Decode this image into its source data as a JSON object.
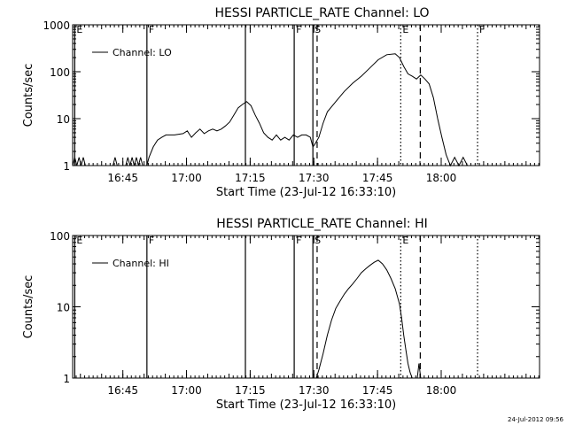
{
  "footer_timestamp": "24-Jul-2012 09:56",
  "chart_data": [
    {
      "type": "line",
      "title": "HESSI PARTICLE_RATE Channel: LO",
      "xlabel": "Start Time (23-Jul-12 16:33:10)",
      "ylabel": "Counts/sec",
      "x_unit": "minutes after 16:33:10",
      "xlim": [
        0,
        110
      ],
      "ylim": [
        1,
        1000
      ],
      "y_scale": "log",
      "x_ticks": [
        {
          "label": "16:45",
          "t": 11.83
        },
        {
          "label": "17:00",
          "t": 26.83
        },
        {
          "label": "17:15",
          "t": 41.83
        },
        {
          "label": "17:30",
          "t": 56.83
        },
        {
          "label": "17:45",
          "t": 71.83
        },
        {
          "label": "18:00",
          "t": 86.83
        }
      ],
      "y_ticks": [
        {
          "label": "1",
          "v": 1
        },
        {
          "label": "10",
          "v": 10
        },
        {
          "label": "100",
          "v": 100
        },
        {
          "label": "1000",
          "v": 1000
        }
      ],
      "legend": {
        "placement": "top-left",
        "label": "Channel: LO"
      },
      "markers": [
        {
          "t": 0.5,
          "style": "solid",
          "label": "E"
        },
        {
          "t": 17.5,
          "style": "solid",
          "label": "F"
        },
        {
          "t": 40.7,
          "style": "solid",
          "label": ""
        },
        {
          "t": 52.2,
          "style": "solid",
          "label": "F"
        },
        {
          "t": 56.6,
          "style": "solid",
          "label": "S"
        },
        {
          "t": 57.6,
          "style": "dashed",
          "label": ""
        },
        {
          "t": 77.3,
          "style": "dotted",
          "label": "E"
        },
        {
          "t": 81.9,
          "style": "dashed",
          "label": ""
        },
        {
          "t": 95.4,
          "style": "dotted",
          "label": "F"
        }
      ],
      "series": [
        {
          "name": "Channel: LO",
          "points": [
            [
              0,
              1
            ],
            [
              0.5,
              1.5
            ],
            [
              1,
              1
            ],
            [
              1.5,
              1.5
            ],
            [
              2,
              1
            ],
            [
              2.5,
              1.5
            ],
            [
              3,
              1
            ],
            [
              9.5,
              1
            ],
            [
              10,
              1.5
            ],
            [
              10.5,
              1
            ],
            [
              12.5,
              1
            ],
            [
              13,
              1.5
            ],
            [
              13.5,
              1
            ],
            [
              14,
              1.5
            ],
            [
              14.5,
              1
            ],
            [
              15,
              1.5
            ],
            [
              15.5,
              1
            ],
            [
              16,
              1.5
            ],
            [
              16.5,
              1
            ],
            [
              17.5,
              1
            ],
            [
              18,
              1.5
            ],
            [
              19,
              2.5
            ],
            [
              20,
              3.5
            ],
            [
              21,
              4
            ],
            [
              22,
              4.5
            ],
            [
              24,
              4.5
            ],
            [
              26,
              4.8
            ],
            [
              27,
              5.5
            ],
            [
              28,
              4
            ],
            [
              29,
              5
            ],
            [
              30,
              6
            ],
            [
              31,
              4.8
            ],
            [
              32,
              5.5
            ],
            [
              33,
              6
            ],
            [
              34,
              5.5
            ],
            [
              35,
              6
            ],
            [
              36,
              7
            ],
            [
              37,
              8.5
            ],
            [
              38,
              12
            ],
            [
              39,
              17
            ],
            [
              40,
              20
            ],
            [
              41,
              23
            ],
            [
              42,
              19
            ],
            [
              43,
              12
            ],
            [
              44,
              8
            ],
            [
              45,
              5
            ],
            [
              46,
              4
            ],
            [
              47,
              3.5
            ],
            [
              48,
              4.5
            ],
            [
              49,
              3.5
            ],
            [
              50,
              4
            ],
            [
              51,
              3.5
            ],
            [
              52,
              4.5
            ],
            [
              53,
              4
            ],
            [
              54,
              4.5
            ],
            [
              55,
              4.5
            ],
            [
              56,
              4
            ],
            [
              56.6,
              2.5
            ],
            [
              57,
              2.8
            ],
            [
              58,
              4
            ],
            [
              59,
              8
            ],
            [
              60,
              14
            ],
            [
              62,
              23
            ],
            [
              64,
              38
            ],
            [
              66,
              57
            ],
            [
              68,
              80
            ],
            [
              70,
              120
            ],
            [
              72,
              180
            ],
            [
              74,
              230
            ],
            [
              76,
              240
            ],
            [
              77,
              200
            ],
            [
              78,
              130
            ],
            [
              79,
              90
            ],
            [
              80,
              80
            ],
            [
              81,
              70
            ],
            [
              82,
              85
            ],
            [
              83,
              70
            ],
            [
              84,
              55
            ],
            [
              85,
              28
            ],
            [
              86,
              10
            ],
            [
              87,
              4
            ],
            [
              88,
              1.7
            ],
            [
              89,
              1
            ],
            [
              90,
              1.5
            ],
            [
              91,
              1
            ],
            [
              92,
              1.5
            ],
            [
              93,
              1
            ]
          ]
        }
      ]
    },
    {
      "type": "line",
      "title": "HESSI PARTICLE_RATE Channel: HI",
      "xlabel": "Start Time (23-Jul-12 16:33:10)",
      "ylabel": "Counts/sec",
      "x_unit": "minutes after 16:33:10",
      "xlim": [
        0,
        110
      ],
      "ylim": [
        1,
        100
      ],
      "y_scale": "log",
      "x_ticks": [
        {
          "label": "16:45",
          "t": 11.83
        },
        {
          "label": "17:00",
          "t": 26.83
        },
        {
          "label": "17:15",
          "t": 41.83
        },
        {
          "label": "17:30",
          "t": 56.83
        },
        {
          "label": "17:45",
          "t": 71.83
        },
        {
          "label": "18:00",
          "t": 86.83
        }
      ],
      "y_ticks": [
        {
          "label": "1",
          "v": 1
        },
        {
          "label": "10",
          "v": 10
        },
        {
          "label": "100",
          "v": 100
        }
      ],
      "legend": {
        "placement": "top-left",
        "label": "Channel: HI"
      },
      "markers": [
        {
          "t": 0.5,
          "style": "solid",
          "label": "E"
        },
        {
          "t": 17.5,
          "style": "solid",
          "label": "F"
        },
        {
          "t": 40.7,
          "style": "solid",
          "label": ""
        },
        {
          "t": 52.2,
          "style": "solid",
          "label": "F"
        },
        {
          "t": 56.6,
          "style": "solid",
          "label": "S"
        },
        {
          "t": 57.6,
          "style": "dashed",
          "label": ""
        },
        {
          "t": 77.3,
          "style": "dotted",
          "label": "E"
        },
        {
          "t": 81.9,
          "style": "dashed",
          "label": ""
        },
        {
          "t": 95.4,
          "style": "dotted",
          "label": ""
        }
      ],
      "series": [
        {
          "name": "Channel: HI",
          "points": [
            [
              57.4,
              1
            ],
            [
              58,
              1.3
            ],
            [
              59,
              2.2
            ],
            [
              60,
              4
            ],
            [
              61,
              6.5
            ],
            [
              62,
              9.5
            ],
            [
              63,
              12
            ],
            [
              64,
              15
            ],
            [
              65,
              18
            ],
            [
              66,
              21
            ],
            [
              67,
              25
            ],
            [
              68,
              30
            ],
            [
              69,
              34
            ],
            [
              70,
              38
            ],
            [
              71,
              42
            ],
            [
              72,
              45
            ],
            [
              73,
              40
            ],
            [
              74,
              33
            ],
            [
              75,
              25
            ],
            [
              76,
              18
            ],
            [
              77,
              11
            ],
            [
              77.5,
              7
            ],
            [
              78,
              4
            ],
            [
              78.5,
              2.5
            ],
            [
              79,
              1.6
            ],
            [
              79.5,
              1.2
            ],
            [
              80,
              1
            ],
            [
              81.2,
              1
            ],
            [
              81.6,
              1.6
            ],
            [
              82,
              1
            ]
          ]
        }
      ]
    }
  ]
}
